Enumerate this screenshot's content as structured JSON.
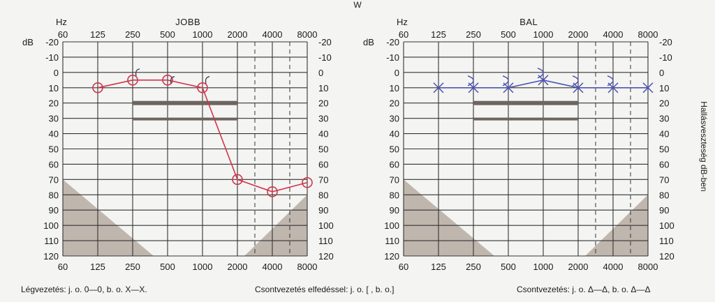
{
  "page": {
    "top_mark": "W",
    "side_label": "Hallásveszteség dB-ben"
  },
  "legend": {
    "air": "Légvezetés: j. o. 0—0, b. o. X—X.",
    "masked": "Csontvezetés elfedéssel: j. o. [        , b. o.]",
    "bone": "Csontvezetés: j. o. Δ—Δ, b. o. Δ—Δ"
  },
  "chart_data": [
    {
      "type": "line",
      "title": "JOBB",
      "hz_label": "Hz",
      "db_label": "dB",
      "x_ticks": [
        "60",
        "125",
        "250",
        "500",
        "1000",
        "2000",
        "4000",
        "8000"
      ],
      "y_ticks": [
        -20,
        -10,
        0,
        10,
        20,
        30,
        40,
        50,
        60,
        70,
        80,
        90,
        100,
        110,
        120
      ],
      "ylim": [
        -20,
        120
      ],
      "y_inverted": true,
      "grid": true,
      "dashed_columns": [
        "3000",
        "6000"
      ],
      "reference_band_db": [
        20,
        30
      ],
      "reference_band_hz": [
        250,
        2000
      ],
      "series": [
        {
          "name": "Légvezetés j. o.",
          "marker": "circle",
          "color": "#d1344a",
          "x": [
            125,
            250,
            500,
            1000,
            2000,
            4000,
            8000
          ],
          "y": [
            10,
            5,
            5,
            10,
            70,
            78,
            72
          ]
        },
        {
          "name": "Csontvezetés elfedéssel j. o.",
          "marker": "bracket",
          "color": "#3a3a55",
          "x": [
            250,
            500,
            1000
          ],
          "y": [
            0,
            5,
            5
          ]
        }
      ]
    },
    {
      "type": "line",
      "title": "BAL",
      "hz_label": "Hz",
      "db_label": "dB",
      "x_ticks": [
        "60",
        "125",
        "250",
        "500",
        "1000",
        "2000",
        "4000",
        "8000"
      ],
      "y_ticks": [
        -20,
        -10,
        0,
        10,
        20,
        30,
        40,
        50,
        60,
        70,
        80,
        90,
        100,
        110,
        120
      ],
      "ylim": [
        -20,
        120
      ],
      "y_inverted": true,
      "grid": true,
      "dashed_columns": [
        "3000",
        "6000"
      ],
      "reference_band_db": [
        20,
        30
      ],
      "reference_band_hz": [
        250,
        2000
      ],
      "series": [
        {
          "name": "Légvezetés b. o.",
          "marker": "x",
          "color": "#4d56b4",
          "x": [
            125,
            250,
            500,
            1000,
            2000,
            4000,
            8000
          ],
          "y": [
            10,
            10,
            10,
            5,
            10,
            10,
            10
          ]
        },
        {
          "name": "Csontvezetés elfedéssel b. o.",
          "marker": "bracket-right",
          "color": "#4d56b4",
          "x": [
            250,
            500,
            1000,
            2000,
            4000
          ],
          "y": [
            5,
            5,
            0,
            5,
            5
          ]
        }
      ]
    }
  ]
}
